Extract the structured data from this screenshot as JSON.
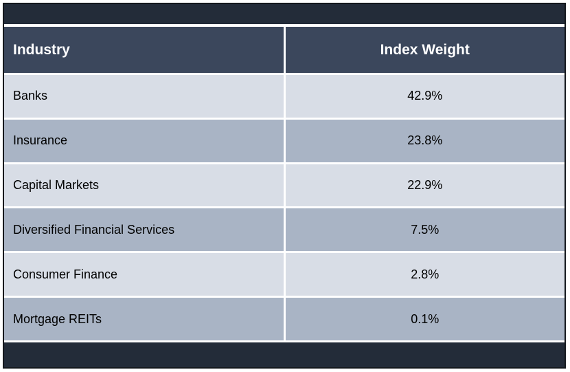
{
  "chart_data": {
    "type": "table",
    "columns": [
      "Industry",
      "Index Weight"
    ],
    "categories": [
      "Banks",
      "Insurance",
      "Capital Markets",
      "Diversified Financial Services",
      "Consumer Finance",
      "Mortgage REITs"
    ],
    "values": [
      42.9,
      23.8,
      22.9,
      7.5,
      2.8,
      0.1
    ],
    "unit": "%"
  },
  "table": {
    "columns": [
      {
        "label": "Industry"
      },
      {
        "label": "Index Weight"
      }
    ],
    "rows": [
      {
        "industry": "Banks",
        "weight": "42.9%"
      },
      {
        "industry": "Insurance",
        "weight": "23.8%"
      },
      {
        "industry": "Capital Markets",
        "weight": "22.9%"
      },
      {
        "industry": "Diversified Financial Services",
        "weight": "7.5%"
      },
      {
        "industry": "Consumer Finance",
        "weight": "2.8%"
      },
      {
        "industry": "Mortgage REITs",
        "weight": "0.1%"
      }
    ]
  },
  "colors": {
    "bar": "#232c39",
    "header_bg": "#3b475c",
    "header_text": "#ffffff",
    "row_light": "#d8dde6",
    "row_dark": "#a9b4c5",
    "cell_text": "#000000",
    "frame_border": "#14181d"
  }
}
